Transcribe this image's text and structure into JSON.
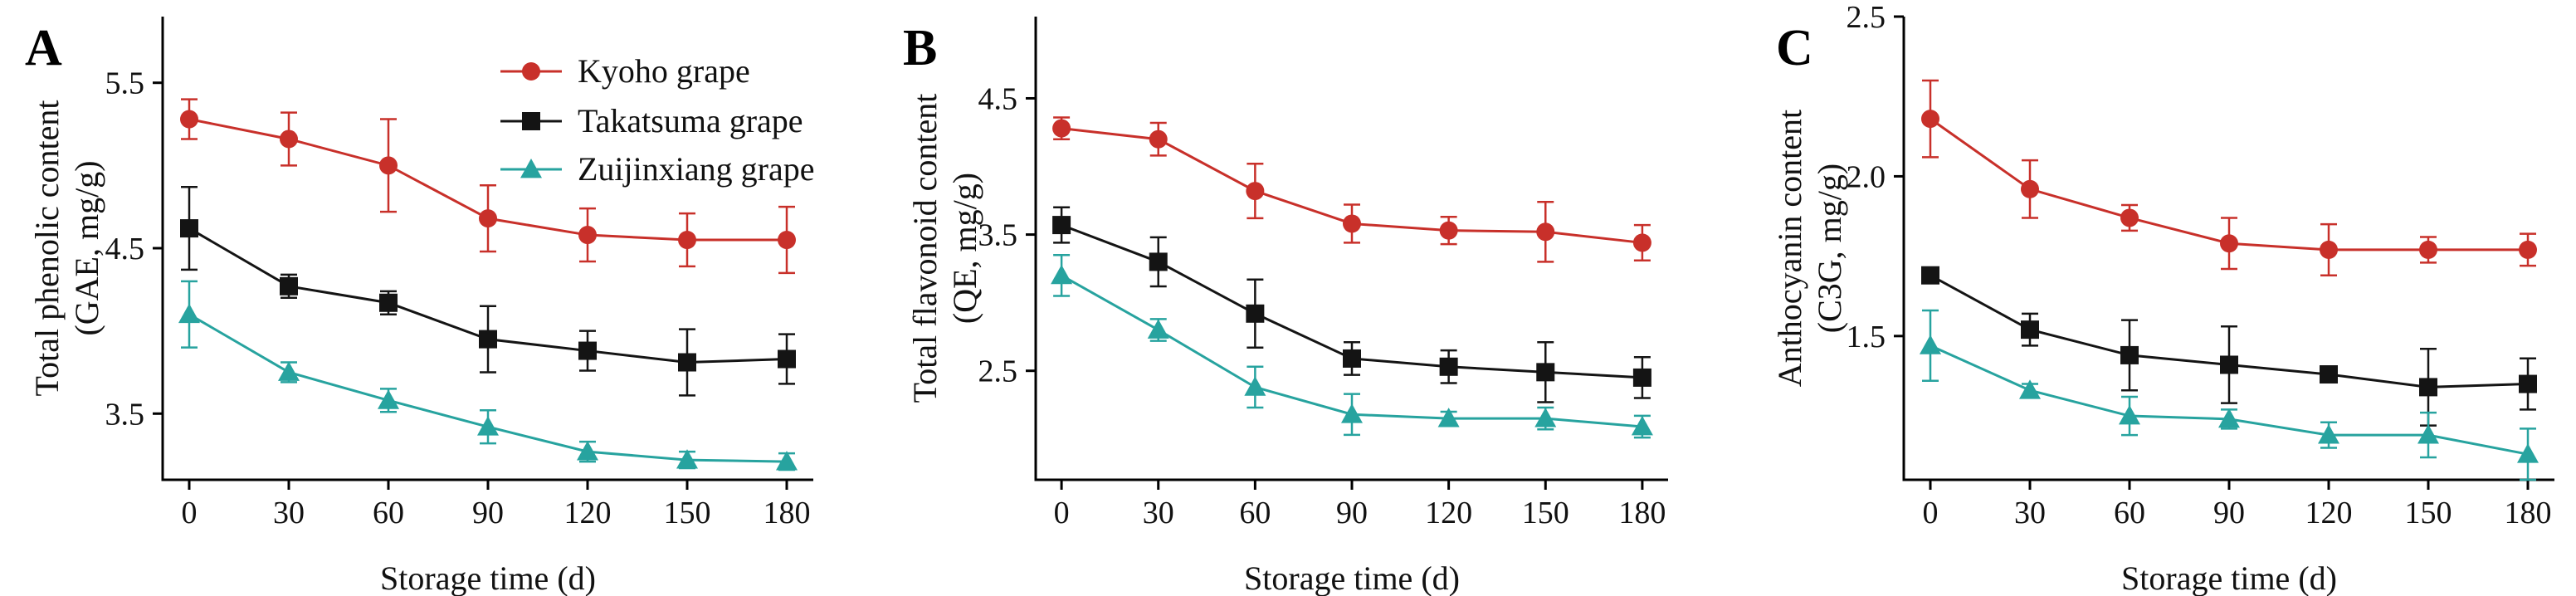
{
  "colors": {
    "kyoho": "#c8302a",
    "takatsuma": "#141414",
    "zuijinxiang": "#27a39f"
  },
  "chart_data": [
    {
      "type": "line",
      "panel": "A",
      "xlabel": "Storage time (d)",
      "ylabel_line1": "Total phenolic content",
      "ylabel_line2": "(GAE, mg/g)",
      "ylim": [
        3.1,
        5.9
      ],
      "y_ticks": [
        3.5,
        4.5,
        5.5
      ],
      "x": [
        0,
        30,
        60,
        90,
        120,
        150,
        180
      ],
      "legend": {
        "position": "top-right",
        "entries": [
          "Kyoho grape",
          "Takatsuma grape",
          "Zuijinxiang grape"
        ]
      },
      "series": [
        {
          "name": "Kyoho grape",
          "color": "#c8302a",
          "marker": "circle",
          "values": [
            5.28,
            5.16,
            5.0,
            4.68,
            4.58,
            4.55,
            4.55
          ],
          "errors": [
            0.12,
            0.16,
            0.28,
            0.2,
            0.16,
            0.16,
            0.2
          ]
        },
        {
          "name": "Takatsuma grape",
          "color": "#141414",
          "marker": "square",
          "values": [
            4.62,
            4.27,
            4.17,
            3.95,
            3.88,
            3.81,
            3.83
          ],
          "errors": [
            0.25,
            0.07,
            0.07,
            0.2,
            0.12,
            0.2,
            0.15
          ]
        },
        {
          "name": "Zuijinxiang grape",
          "color": "#27a39f",
          "marker": "triangle",
          "values": [
            4.1,
            3.75,
            3.58,
            3.42,
            3.27,
            3.22,
            3.21
          ],
          "errors": [
            0.2,
            0.06,
            0.07,
            0.1,
            0.06,
            0.05,
            0.05
          ]
        }
      ]
    },
    {
      "type": "line",
      "panel": "B",
      "xlabel": "Storage time (d)",
      "ylabel_line1": "Total flavonoid content",
      "ylabel_line2": "(QE, mg/g)",
      "ylim": [
        1.7,
        5.1
      ],
      "y_ticks": [
        2.5,
        3.5,
        4.5
      ],
      "x": [
        0,
        30,
        60,
        90,
        120,
        150,
        180
      ],
      "series": [
        {
          "name": "Kyoho grape",
          "color": "#c8302a",
          "marker": "circle",
          "values": [
            4.28,
            4.2,
            3.82,
            3.58,
            3.53,
            3.52,
            3.44
          ],
          "errors": [
            0.08,
            0.12,
            0.2,
            0.14,
            0.1,
            0.22,
            0.13
          ]
        },
        {
          "name": "Takatsuma grape",
          "color": "#141414",
          "marker": "square",
          "values": [
            3.57,
            3.3,
            2.92,
            2.59,
            2.53,
            2.49,
            2.45
          ],
          "errors": [
            0.13,
            0.18,
            0.25,
            0.12,
            0.12,
            0.22,
            0.15
          ]
        },
        {
          "name": "Zuijinxiang grape",
          "color": "#27a39f",
          "marker": "triangle",
          "values": [
            3.2,
            2.8,
            2.38,
            2.18,
            2.15,
            2.15,
            2.09
          ],
          "errors": [
            0.15,
            0.08,
            0.15,
            0.15,
            0.05,
            0.08,
            0.08
          ]
        }
      ]
    },
    {
      "type": "line",
      "panel": "C",
      "xlabel": "Storage time (d)",
      "ylabel_line1": "Anthocyanin content",
      "ylabel_line2": "(C3G, mg/g)",
      "ylim": [
        1.05,
        2.5
      ],
      "y_ticks": [
        1.5,
        2.0,
        2.5
      ],
      "x": [
        0,
        30,
        60,
        90,
        120,
        150,
        180
      ],
      "series": [
        {
          "name": "Kyoho grape",
          "color": "#c8302a",
          "marker": "circle",
          "values": [
            2.18,
            1.96,
            1.87,
            1.79,
            1.77,
            1.77,
            1.77
          ],
          "errors": [
            0.12,
            0.09,
            0.04,
            0.08,
            0.08,
            0.04,
            0.05
          ]
        },
        {
          "name": "Takatsuma grape",
          "color": "#141414",
          "marker": "square",
          "values": [
            1.69,
            1.52,
            1.44,
            1.41,
            1.38,
            1.34,
            1.35
          ],
          "errors": [
            0.02,
            0.05,
            0.11,
            0.12,
            0.02,
            0.12,
            0.08
          ]
        },
        {
          "name": "Zuijinxiang grape",
          "color": "#27a39f",
          "marker": "triangle",
          "values": [
            1.47,
            1.33,
            1.25,
            1.24,
            1.19,
            1.19,
            1.13
          ],
          "errors": [
            0.11,
            0.02,
            0.06,
            0.03,
            0.04,
            0.07,
            0.08
          ]
        }
      ]
    }
  ]
}
